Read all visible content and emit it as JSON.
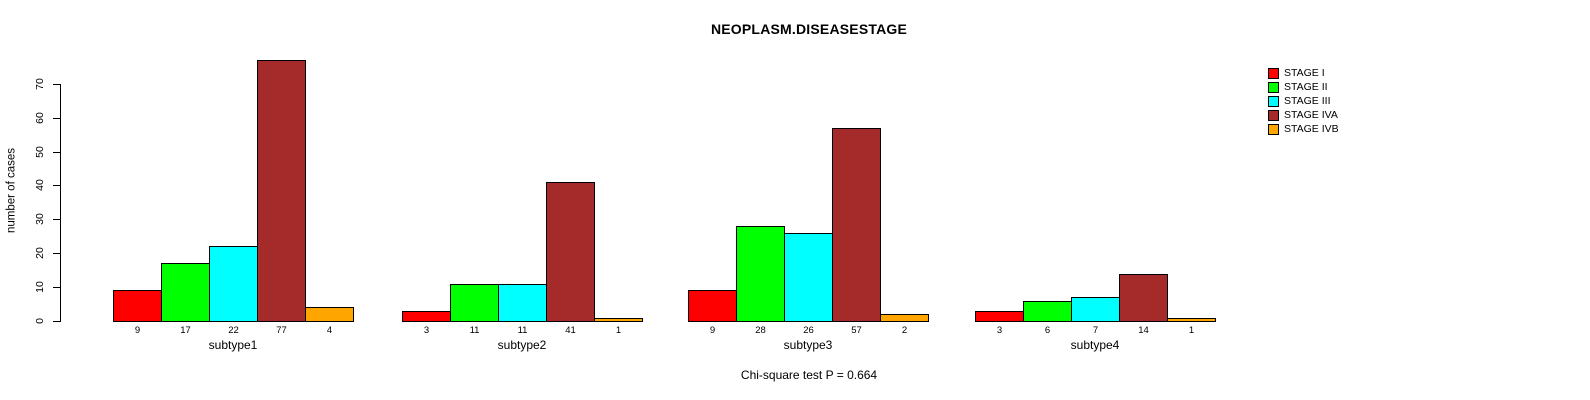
{
  "title": "NEOPLASM.DISEASESTAGE",
  "chart_data": {
    "type": "bar",
    "title": "NEOPLASM.DISEASESTAGE",
    "ylabel": "number of cases",
    "xlabel": "",
    "categories": [
      "subtype1",
      "subtype2",
      "subtype3",
      "subtype4"
    ],
    "series": [
      {
        "name": "STAGE I",
        "color": "#ff0000",
        "values": [
          9,
          3,
          9,
          3
        ]
      },
      {
        "name": "STAGE II",
        "color": "#00ff00",
        "values": [
          17,
          11,
          28,
          6
        ]
      },
      {
        "name": "STAGE III",
        "color": "#00ffff",
        "values": [
          22,
          11,
          26,
          7
        ]
      },
      {
        "name": "STAGE IVA",
        "color": "#a52a2a",
        "values": [
          77,
          41,
          57,
          14
        ]
      },
      {
        "name": "STAGE IVB",
        "color": "#ffa500",
        "values": [
          4,
          1,
          2,
          1
        ]
      }
    ],
    "yticks": [
      0,
      10,
      20,
      30,
      40,
      50,
      60,
      70
    ],
    "ylim": [
      0,
      77
    ],
    "bar_value_labels_shown": true,
    "legend_position": "top-right",
    "grid": false,
    "annotation": "Chi-square test P = 0.664"
  }
}
